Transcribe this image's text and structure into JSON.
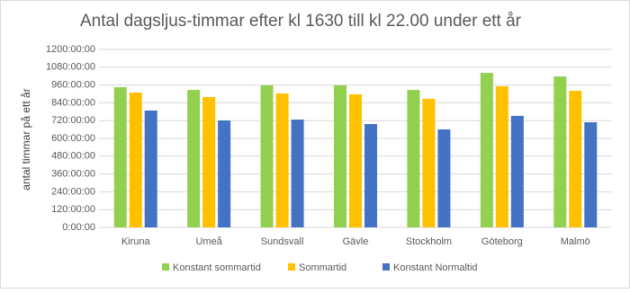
{
  "chart_data": {
    "type": "bar",
    "title": "Antal dagsljus-timmar efter kl 1630 till kl 22.00 under ett år",
    "y_label": "antal timmar på ett år",
    "categories": [
      "Kiruna",
      "Umeå",
      "Sundsvall",
      "Gävle",
      "Stockholm",
      "Göteborg",
      "Malmö"
    ],
    "series": [
      {
        "name": "Konstant sommartid",
        "color": "#92d050",
        "values": [
          945,
          927,
          958,
          958,
          927,
          1042,
          1018
        ]
      },
      {
        "name": "Sommartid",
        "color": "#ffc000",
        "values": [
          909,
          879,
          903,
          897,
          867,
          952,
          921
        ]
      },
      {
        "name": "Konstant Normaltid",
        "color": "#4472c4",
        "values": [
          788,
          721,
          727,
          697,
          661,
          752,
          709
        ]
      }
    ],
    "ylim": [
      0,
      1200
    ],
    "yticks": [
      {
        "value": 0,
        "label": "0:00:00"
      },
      {
        "value": 120,
        "label": "120:00:00"
      },
      {
        "value": 240,
        "label": "240:00:00"
      },
      {
        "value": 360,
        "label": "360:00:00"
      },
      {
        "value": 480,
        "label": "480:00:00"
      },
      {
        "value": 600,
        "label": "600:00:00"
      },
      {
        "value": 720,
        "label": "720:00:00"
      },
      {
        "value": 840,
        "label": "840:00:00"
      },
      {
        "value": 960,
        "label": "960:00:00"
      },
      {
        "value": 1080,
        "label": "1080:00:00"
      },
      {
        "value": 1200,
        "label": "1200:00:00"
      }
    ],
    "grid": true,
    "legend": "bottom"
  }
}
